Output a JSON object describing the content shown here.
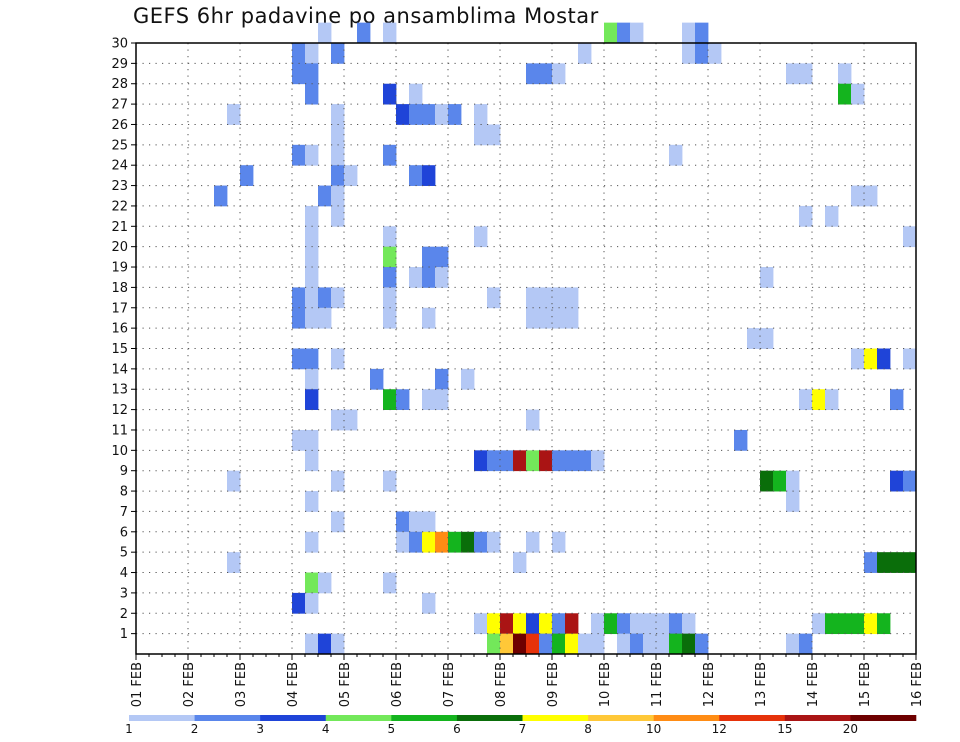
{
  "chart_data": {
    "type": "heatmap",
    "title": "GEFS 6hr padavine po ansamblima Mostar",
    "y_ticks": [
      "1",
      "2",
      "3",
      "4",
      "5",
      "6",
      "7",
      "8",
      "9",
      "10",
      "11",
      "12",
      "13",
      "14",
      "15",
      "16",
      "17",
      "18",
      "19",
      "20",
      "21",
      "22",
      "23",
      "24",
      "25",
      "26",
      "27",
      "28",
      "29",
      "30"
    ],
    "x_ticks": [
      "01 FEB",
      "02 FEB",
      "03 FEB",
      "04 FEB",
      "05 FEB",
      "06 FEB",
      "07 FEB",
      "08 FEB",
      "09 FEB",
      "10 FEB",
      "11 FEB",
      "12 FEB",
      "13 FEB",
      "14 FEB",
      "15 FEB",
      "16 FEB"
    ],
    "x_unit": "6-hour steps from 01 FEB 00Z (4 per day)",
    "xlim": [
      0,
      60
    ],
    "ylim": [
      0,
      30
    ],
    "grid": true,
    "colorbar": {
      "position": "bottom",
      "labels": [
        "1",
        "2",
        "3",
        "4",
        "5",
        "6",
        "7",
        "8",
        "10",
        "12",
        "15",
        "20"
      ],
      "colors": [
        "#b4c8f5",
        "#5a86eb",
        "#1f44d8",
        "#73e85a",
        "#14b41e",
        "#0a6e0a",
        "#ffff00",
        "#ffc838",
        "#ff8c14",
        "#e6320a",
        "#aa1414",
        "#6e0000"
      ]
    },
    "cells": [
      [
        14,
        30,
        1
      ],
      [
        17,
        30,
        2
      ],
      [
        19,
        30,
        1
      ],
      [
        36,
        30,
        4
      ],
      [
        37,
        30,
        2
      ],
      [
        38,
        30,
        1
      ],
      [
        42,
        30,
        1
      ],
      [
        43,
        30,
        2
      ],
      [
        12,
        29,
        2
      ],
      [
        13,
        29,
        1
      ],
      [
        15,
        29,
        2
      ],
      [
        34,
        29,
        1
      ],
      [
        42,
        29,
        1
      ],
      [
        43,
        29,
        2
      ],
      [
        44,
        29,
        1
      ],
      [
        12,
        28,
        2
      ],
      [
        13,
        28,
        2
      ],
      [
        30,
        28,
        2
      ],
      [
        31,
        28,
        2
      ],
      [
        32,
        28,
        1
      ],
      [
        50,
        28,
        1
      ],
      [
        51,
        28,
        1
      ],
      [
        54,
        28,
        1
      ],
      [
        13,
        27,
        2
      ],
      [
        19,
        27,
        3
      ],
      [
        21,
        27,
        1
      ],
      [
        54,
        27,
        5
      ],
      [
        55,
        27,
        1
      ],
      [
        7,
        26,
        1
      ],
      [
        15,
        26,
        1
      ],
      [
        20,
        26,
        3
      ],
      [
        21,
        26,
        2
      ],
      [
        22,
        26,
        2
      ],
      [
        23,
        26,
        1
      ],
      [
        24,
        26,
        2
      ],
      [
        26,
        26,
        1
      ],
      [
        15,
        25,
        1
      ],
      [
        26,
        25,
        1
      ],
      [
        27,
        25,
        1
      ],
      [
        12,
        24,
        2
      ],
      [
        13,
        24,
        1
      ],
      [
        15,
        24,
        1
      ],
      [
        19,
        24,
        2
      ],
      [
        41,
        24,
        1
      ],
      [
        8,
        23,
        2
      ],
      [
        15,
        23,
        2
      ],
      [
        16,
        23,
        1
      ],
      [
        21,
        23,
        2
      ],
      [
        22,
        23,
        3
      ],
      [
        6,
        22,
        2
      ],
      [
        14,
        22,
        2
      ],
      [
        15,
        22,
        1
      ],
      [
        55,
        22,
        1
      ],
      [
        56,
        22,
        1
      ],
      [
        13,
        21,
        1
      ],
      [
        15,
        21,
        1
      ],
      [
        51,
        21,
        1
      ],
      [
        53,
        21,
        1
      ],
      [
        13,
        20,
        1
      ],
      [
        19,
        20,
        1
      ],
      [
        26,
        20,
        1
      ],
      [
        59,
        20,
        1
      ],
      [
        13,
        19,
        1
      ],
      [
        19,
        19,
        4
      ],
      [
        22,
        19,
        2
      ],
      [
        23,
        19,
        2
      ],
      [
        13,
        18,
        1
      ],
      [
        19,
        18,
        2
      ],
      [
        21,
        18,
        1
      ],
      [
        22,
        18,
        2
      ],
      [
        23,
        18,
        1
      ],
      [
        48,
        18,
        1
      ],
      [
        12,
        17,
        2
      ],
      [
        13,
        17,
        1
      ],
      [
        14,
        17,
        2
      ],
      [
        15,
        17,
        1
      ],
      [
        19,
        17,
        1
      ],
      [
        27,
        17,
        1
      ],
      [
        30,
        17,
        1
      ],
      [
        31,
        17,
        1
      ],
      [
        32,
        17,
        1
      ],
      [
        33,
        17,
        1
      ],
      [
        12,
        16,
        2
      ],
      [
        13,
        16,
        1
      ],
      [
        14,
        16,
        1
      ],
      [
        19,
        16,
        1
      ],
      [
        22,
        16,
        1
      ],
      [
        30,
        16,
        1
      ],
      [
        31,
        16,
        1
      ],
      [
        32,
        16,
        1
      ],
      [
        33,
        16,
        1
      ],
      [
        47,
        15,
        1
      ],
      [
        48,
        15,
        1
      ],
      [
        12,
        14,
        2
      ],
      [
        13,
        14,
        2
      ],
      [
        15,
        14,
        1
      ],
      [
        55,
        14,
        1
      ],
      [
        56,
        14,
        7
      ],
      [
        57,
        14,
        3
      ],
      [
        59,
        14,
        1
      ],
      [
        13,
        13,
        1
      ],
      [
        18,
        13,
        2
      ],
      [
        23,
        13,
        2
      ],
      [
        25,
        13,
        1
      ],
      [
        13,
        12,
        3
      ],
      [
        19,
        12,
        5
      ],
      [
        20,
        12,
        2
      ],
      [
        22,
        12,
        1
      ],
      [
        23,
        12,
        1
      ],
      [
        51,
        12,
        1
      ],
      [
        52,
        12,
        7
      ],
      [
        53,
        12,
        1
      ],
      [
        58,
        12,
        2
      ],
      [
        15,
        11,
        1
      ],
      [
        16,
        11,
        1
      ],
      [
        30,
        11,
        1
      ],
      [
        12,
        10,
        1
      ],
      [
        13,
        10,
        1
      ],
      [
        46,
        10,
        2
      ],
      [
        13,
        9,
        1
      ],
      [
        26,
        9,
        3
      ],
      [
        27,
        9,
        2
      ],
      [
        28,
        9,
        2
      ],
      [
        29,
        9,
        11
      ],
      [
        30,
        9,
        4
      ],
      [
        31,
        9,
        11
      ],
      [
        32,
        9,
        2
      ],
      [
        33,
        9,
        2
      ],
      [
        34,
        9,
        2
      ],
      [
        35,
        9,
        1
      ],
      [
        7,
        8,
        1
      ],
      [
        15,
        8,
        1
      ],
      [
        19,
        8,
        1
      ],
      [
        48,
        8,
        6
      ],
      [
        49,
        8,
        5
      ],
      [
        50,
        8,
        1
      ],
      [
        58,
        8,
        3
      ],
      [
        59,
        8,
        2
      ],
      [
        13,
        7,
        1
      ],
      [
        50,
        7,
        1
      ],
      [
        15,
        6,
        1
      ],
      [
        20,
        6,
        2
      ],
      [
        21,
        6,
        1
      ],
      [
        22,
        6,
        1
      ],
      [
        13,
        5,
        1
      ],
      [
        20,
        5,
        1
      ],
      [
        21,
        5,
        2
      ],
      [
        22,
        5,
        7
      ],
      [
        23,
        5,
        9
      ],
      [
        24,
        5,
        5
      ],
      [
        25,
        5,
        6
      ],
      [
        26,
        5,
        2
      ],
      [
        27,
        5,
        1
      ],
      [
        30,
        5,
        1
      ],
      [
        32,
        5,
        1
      ],
      [
        7,
        4,
        1
      ],
      [
        29,
        4,
        1
      ],
      [
        56,
        4,
        2
      ],
      [
        57,
        4,
        6
      ],
      [
        58,
        4,
        6
      ],
      [
        59,
        4,
        6
      ],
      [
        13,
        3,
        4
      ],
      [
        14,
        3,
        1
      ],
      [
        19,
        3,
        1
      ],
      [
        12,
        2,
        3
      ],
      [
        13,
        2,
        1
      ],
      [
        22,
        2,
        1
      ],
      [
        26,
        1,
        1
      ],
      [
        27,
        1,
        7
      ],
      [
        28,
        1,
        11
      ],
      [
        29,
        1,
        7
      ],
      [
        30,
        1,
        3
      ],
      [
        31,
        1,
        7
      ],
      [
        32,
        1,
        2
      ],
      [
        33,
        1,
        11
      ],
      [
        35,
        1,
        1
      ],
      [
        36,
        1,
        5
      ],
      [
        37,
        1,
        2
      ],
      [
        38,
        1,
        1
      ],
      [
        39,
        1,
        1
      ],
      [
        40,
        1,
        1
      ],
      [
        41,
        1,
        2
      ],
      [
        42,
        1,
        1
      ],
      [
        52,
        1,
        1
      ],
      [
        53,
        1,
        5
      ],
      [
        54,
        1,
        5
      ],
      [
        55,
        1,
        5
      ],
      [
        56,
        1,
        7
      ],
      [
        57,
        1,
        5
      ],
      [
        13,
        0,
        1
      ],
      [
        14,
        0,
        3
      ],
      [
        15,
        0,
        1
      ],
      [
        27,
        0,
        4
      ],
      [
        28,
        0,
        8
      ],
      [
        29,
        0,
        12
      ],
      [
        30,
        0,
        10
      ],
      [
        31,
        0,
        2
      ],
      [
        32,
        0,
        5
      ],
      [
        33,
        0,
        7
      ],
      [
        34,
        0,
        1
      ],
      [
        35,
        0,
        1
      ],
      [
        37,
        0,
        1
      ],
      [
        38,
        0,
        2
      ],
      [
        39,
        0,
        1
      ],
      [
        40,
        0,
        1
      ],
      [
        41,
        0,
        5
      ],
      [
        42,
        0,
        6
      ],
      [
        43,
        0,
        2
      ],
      [
        50,
        0,
        1
      ],
      [
        51,
        0,
        2
      ]
    ]
  }
}
